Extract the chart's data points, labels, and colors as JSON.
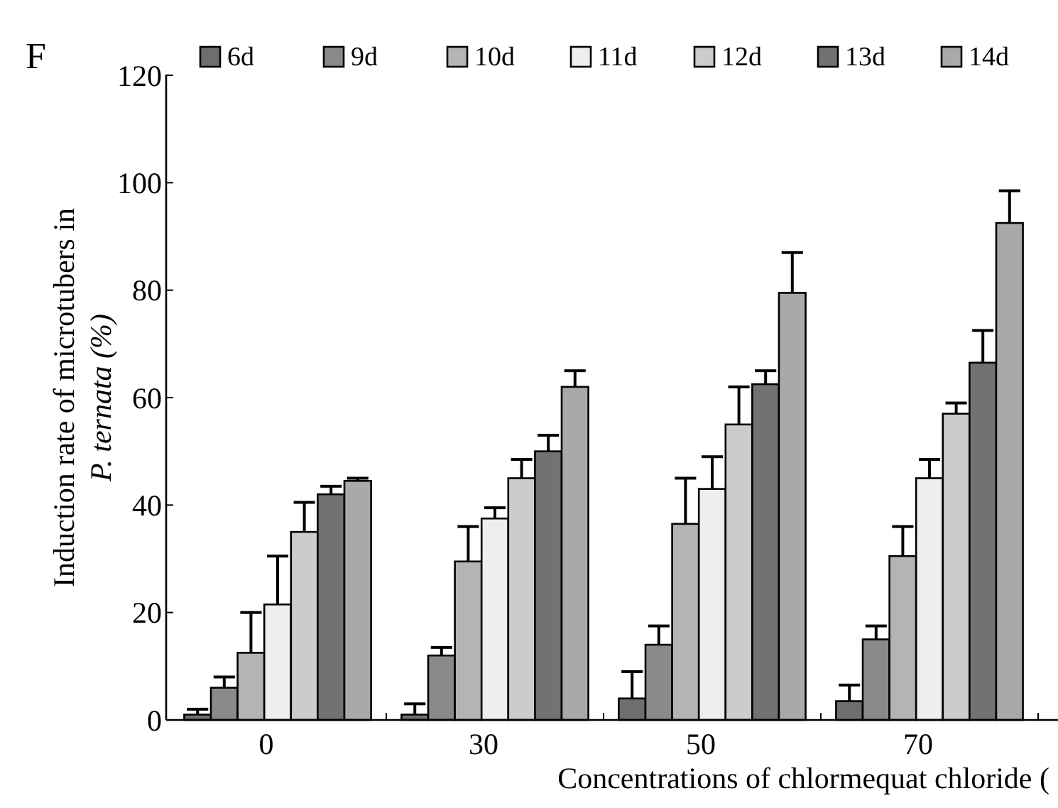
{
  "chart_data": {
    "type": "bar",
    "annotations": [
      "F"
    ],
    "xlabel": "Concentrations of chlormequat chloride (",
    "ylabel": "Induction rate of microtubers in\nP. ternata (%)",
    "categories": [
      "0",
      "30",
      "50",
      "70"
    ],
    "ylim": [
      0,
      120
    ],
    "yticks": [
      0,
      20,
      40,
      60,
      80,
      100,
      120
    ],
    "grid": false,
    "legend": "top",
    "series": [
      {
        "name": "6d",
        "color": "#6e6e6e",
        "values": [
          1,
          1,
          4,
          3.5
        ],
        "errors": [
          [
            1,
            2
          ],
          [
            1,
            3
          ],
          [
            4,
            9
          ],
          [
            3.5,
            6.5
          ]
        ]
      },
      {
        "name": "9d",
        "color": "#8a8a8a",
        "values": [
          6,
          12,
          14,
          15
        ],
        "errors": [
          [
            6,
            8
          ],
          [
            12,
            13.5
          ],
          [
            14,
            17.5
          ],
          [
            15,
            17.5
          ]
        ]
      },
      {
        "name": "10d",
        "color": "#b4b4b4",
        "values": [
          12.5,
          29.5,
          36.5,
          30.5
        ],
        "errors": [
          [
            12.5,
            20
          ],
          [
            29.5,
            36
          ],
          [
            36.5,
            45
          ],
          [
            30.5,
            36
          ]
        ]
      },
      {
        "name": "11d",
        "color": "#eeeeee",
        "values": [
          21.5,
          37.5,
          43,
          45
        ],
        "errors": [
          [
            21.5,
            30.5
          ],
          [
            37.5,
            39.5
          ],
          [
            43,
            49
          ],
          [
            45,
            48.5
          ]
        ]
      },
      {
        "name": "12d",
        "color": "#cccccc",
        "values": [
          35,
          45,
          55,
          57
        ],
        "errors": [
          [
            35,
            40.5
          ],
          [
            45,
            48.5
          ],
          [
            55,
            62
          ],
          [
            57,
            59
          ]
        ]
      },
      {
        "name": "13d",
        "color": "#727272",
        "values": [
          42,
          50,
          62.5,
          66.5
        ],
        "errors": [
          [
            42,
            43.5
          ],
          [
            50,
            53
          ],
          [
            62.5,
            65
          ],
          [
            66.5,
            72.5
          ]
        ]
      },
      {
        "name": "14d",
        "color": "#a9a9a9",
        "values": [
          44.5,
          62,
          79.5,
          92.5
        ],
        "errors": [
          [
            44.5,
            45
          ],
          [
            62,
            65
          ],
          [
            79.5,
            87
          ],
          [
            92.5,
            98.5
          ]
        ]
      }
    ]
  }
}
